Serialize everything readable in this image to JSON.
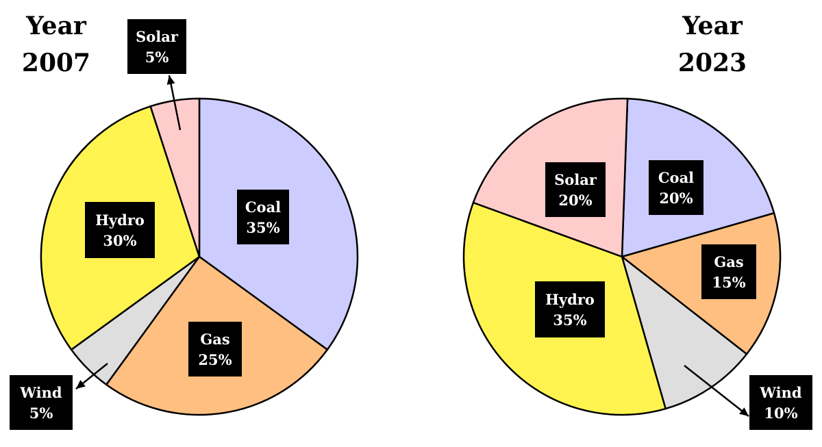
{
  "chart_data": [
    {
      "type": "pie",
      "title_line1": "Year",
      "title_line2": "2007",
      "slices": [
        {
          "name": "Coal",
          "value": 35,
          "label": "35%",
          "color": "#ccccff"
        },
        {
          "name": "Gas",
          "value": 25,
          "label": "25%",
          "color": "#ffbf80"
        },
        {
          "name": "Wind",
          "value": 5,
          "label": "5%",
          "color": "#dedede"
        },
        {
          "name": "Hydro",
          "value": 30,
          "label": "30%",
          "color": "#fff44f"
        },
        {
          "name": "Solar",
          "value": 5,
          "label": "5%",
          "color": "#ffcccc"
        }
      ]
    },
    {
      "type": "pie",
      "title_line1": "Year",
      "title_line2": "2023",
      "slices": [
        {
          "name": "Coal",
          "value": 20,
          "label": "20%",
          "color": "#ccccff"
        },
        {
          "name": "Gas",
          "value": 15,
          "label": "15%",
          "color": "#ffbf80"
        },
        {
          "name": "Wind",
          "value": 10,
          "label": "10%",
          "color": "#dedede"
        },
        {
          "name": "Hydro",
          "value": 35,
          "label": "35%",
          "color": "#fff44f"
        },
        {
          "name": "Solar",
          "value": 20,
          "label": "20%",
          "color": "#ffcccc"
        }
      ]
    }
  ]
}
